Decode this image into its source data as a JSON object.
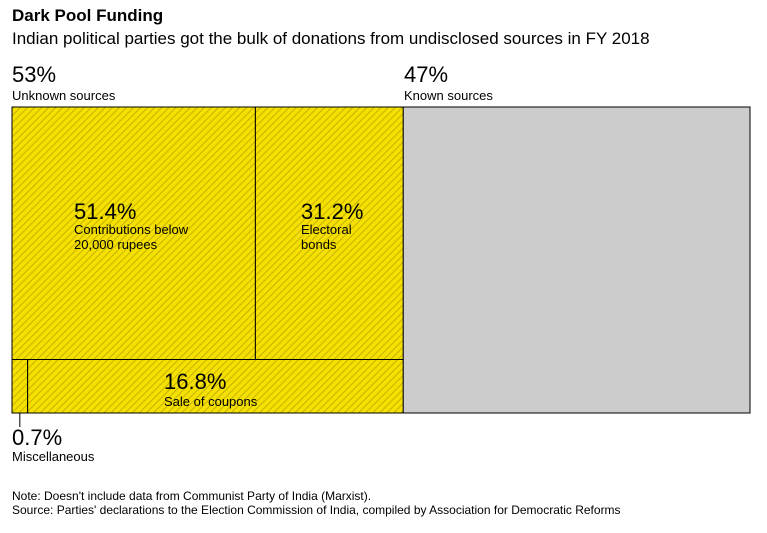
{
  "header": {
    "title": "Dark Pool Funding",
    "subtitle": "Indian political parties got the bulk of donations from undisclosed sources in FY 2018"
  },
  "chart_data": {
    "type": "treemap",
    "title": "Dark Pool Funding",
    "subtitle": "Indian political parties got the bulk of donations from undisclosed sources in FY 2018",
    "groups": [
      {
        "name": "Unknown sources",
        "share_label": "53%",
        "value": 53,
        "color": "#f5e000",
        "pattern": "diagonal-hatch",
        "children": [
          {
            "name": "Contributions below 20,000 rupees",
            "label_lines": [
              "Contributions below",
              "20,000 rupees"
            ],
            "share_label": "51.4%",
            "value": 51.4
          },
          {
            "name": "Electoral bonds",
            "label_lines": [
              "Electoral",
              "bonds"
            ],
            "share_label": "31.2%",
            "value": 31.2
          },
          {
            "name": "Sale of coupons",
            "label_lines": [
              "Sale of coupons"
            ],
            "share_label": "16.8%",
            "value": 16.8
          },
          {
            "name": "Miscellaneous",
            "label_lines": [
              "Miscellaneous"
            ],
            "share_label": "0.7%",
            "value": 0.7
          }
        ]
      },
      {
        "name": "Known sources",
        "share_label": "47%",
        "value": 47,
        "color": "#cccccc",
        "pattern": "solid",
        "children": []
      }
    ]
  },
  "notes": {
    "note": "Note: Doesn't include data from Communist Party of India (Marxist).",
    "source": "Source: Parties' declarations to the Election Commission of India, compiled by Association for Democratic Reforms"
  }
}
